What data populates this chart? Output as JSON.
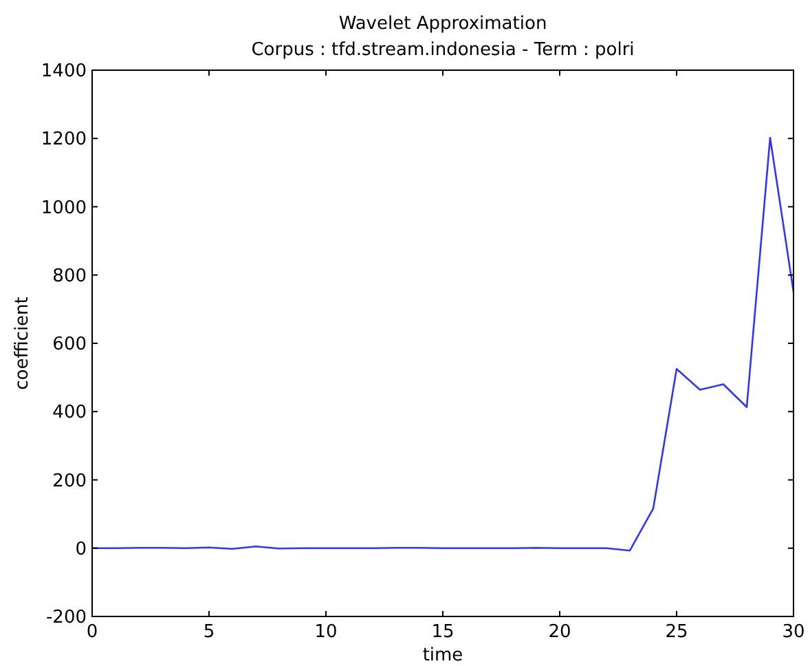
{
  "chart_data": {
    "type": "line",
    "title": "Wavelet Approximation",
    "subtitle": "Corpus : tfd.stream.indonesia - Term : polri",
    "xlabel": "time",
    "ylabel": "coefficient",
    "x": [
      0,
      1,
      2,
      3,
      4,
      5,
      6,
      7,
      8,
      9,
      10,
      11,
      12,
      13,
      14,
      15,
      16,
      17,
      18,
      19,
      20,
      21,
      22,
      23,
      24,
      25,
      26,
      27,
      28,
      29,
      30
    ],
    "series": [
      {
        "color": "#3333ff",
        "values": [
          0,
          0,
          1,
          1,
          0,
          2,
          -2,
          5,
          -1,
          0,
          0,
          0,
          0,
          1,
          1,
          0,
          0,
          0,
          0,
          1,
          0,
          0,
          0,
          -7,
          116,
          525,
          464,
          480,
          413,
          1202,
          751
        ]
      }
    ],
    "xlim": [
      0,
      30
    ],
    "xticks": [
      0,
      5,
      10,
      15,
      20,
      25,
      30
    ],
    "ylim": [
      -200,
      1400
    ],
    "yticks": [
      -200,
      0,
      200,
      400,
      600,
      800,
      1000,
      1200,
      1400
    ],
    "grid": false,
    "marker": "none",
    "line_style": "solid"
  }
}
